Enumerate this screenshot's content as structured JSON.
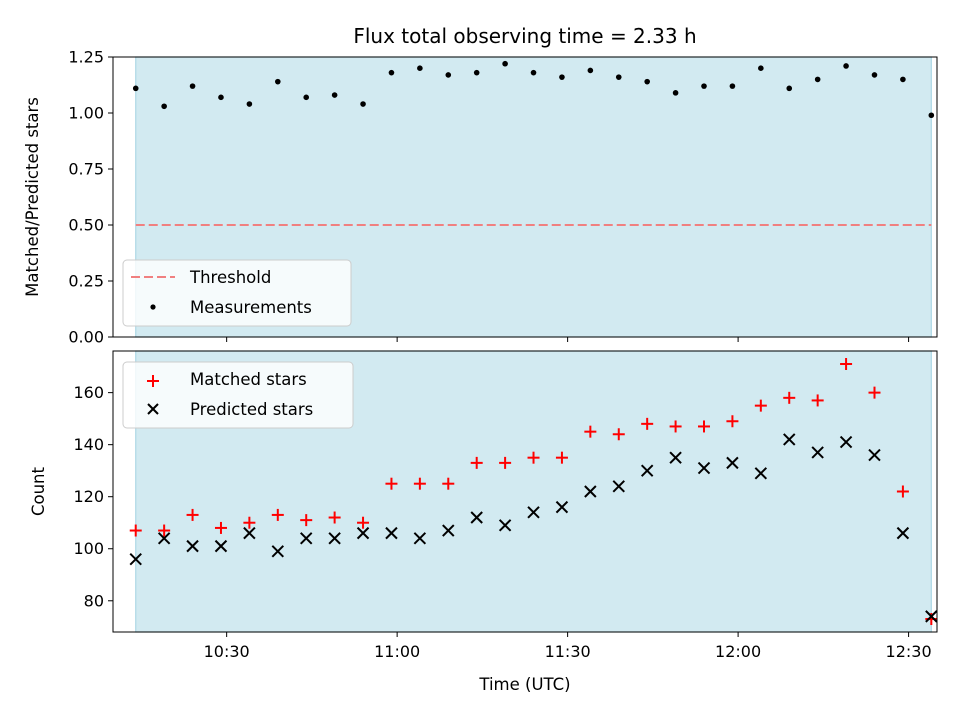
{
  "chart_data": [
    {
      "type": "scatter",
      "title": "Flux total observing time = 2.33 h",
      "xlabel": "",
      "ylabel": "Matched/Predicted stars",
      "ylim": [
        0,
        1.25
      ],
      "yticks": [
        "0.00",
        "0.25",
        "0.50",
        "0.75",
        "1.00",
        "1.25"
      ],
      "xlim": [
        "10:10",
        "12:35"
      ],
      "shaded_span": [
        "10:14",
        "12:34"
      ],
      "shade_color": "#add8e6",
      "legend_position": "lower left",
      "threshold": {
        "name": "Threshold",
        "value": 0.5,
        "color": "#f08080",
        "style": "dashed"
      },
      "series": [
        {
          "name": "Measurements",
          "color": "#000000",
          "marker": "dot",
          "x": [
            "10:14",
            "10:19",
            "10:24",
            "10:29",
            "10:34",
            "10:39",
            "10:44",
            "10:49",
            "10:54",
            "10:59",
            "11:04",
            "11:09",
            "11:14",
            "11:19",
            "11:24",
            "11:29",
            "11:34",
            "11:39",
            "11:44",
            "11:49",
            "11:54",
            "11:59",
            "12:04",
            "12:09",
            "12:14",
            "12:19",
            "12:24",
            "12:29",
            "12:34"
          ],
          "values": [
            1.11,
            1.03,
            1.12,
            1.07,
            1.04,
            1.14,
            1.07,
            1.08,
            1.04,
            1.18,
            1.2,
            1.17,
            1.18,
            1.22,
            1.18,
            1.16,
            1.19,
            1.16,
            1.14,
            1.09,
            1.12,
            1.12,
            1.2,
            1.11,
            1.15,
            1.21,
            1.17,
            1.15,
            0.99
          ]
        }
      ]
    },
    {
      "type": "scatter",
      "title": "",
      "xlabel": "Time (UTC)",
      "ylabel": "Count",
      "ylim": [
        68,
        176
      ],
      "yticks": [
        "80",
        "100",
        "120",
        "140",
        "160"
      ],
      "xlim": [
        "10:10",
        "12:35"
      ],
      "xticks": [
        "10:30",
        "11:00",
        "11:30",
        "12:00",
        "12:30"
      ],
      "shaded_span": [
        "10:14",
        "12:34"
      ],
      "shade_color": "#add8e6",
      "legend_position": "upper left",
      "series": [
        {
          "name": "Matched stars",
          "color": "#ff0000",
          "marker": "plus",
          "x": [
            "10:14",
            "10:19",
            "10:24",
            "10:29",
            "10:34",
            "10:39",
            "10:44",
            "10:49",
            "10:54",
            "10:59",
            "11:04",
            "11:09",
            "11:14",
            "11:19",
            "11:24",
            "11:29",
            "11:34",
            "11:39",
            "11:44",
            "11:49",
            "11:54",
            "11:59",
            "12:04",
            "12:09",
            "12:14",
            "12:19",
            "12:24",
            "12:29",
            "12:34"
          ],
          "values": [
            107,
            107,
            113,
            108,
            110,
            113,
            111,
            112,
            110,
            125,
            125,
            125,
            133,
            133,
            135,
            135,
            145,
            144,
            148,
            147,
            147,
            149,
            155,
            158,
            157,
            171,
            160,
            122,
            73
          ]
        },
        {
          "name": "Predicted stars",
          "color": "#000000",
          "marker": "x",
          "x": [
            "10:14",
            "10:19",
            "10:24",
            "10:29",
            "10:34",
            "10:39",
            "10:44",
            "10:49",
            "10:54",
            "10:59",
            "11:04",
            "11:09",
            "11:14",
            "11:19",
            "11:24",
            "11:29",
            "11:34",
            "11:39",
            "11:44",
            "11:49",
            "11:54",
            "11:59",
            "12:04",
            "12:09",
            "12:14",
            "12:19",
            "12:24",
            "12:29",
            "12:34"
          ],
          "values": [
            96,
            104,
            101,
            101,
            106,
            99,
            104,
            104,
            106,
            106,
            104,
            107,
            112,
            109,
            114,
            116,
            122,
            124,
            130,
            135,
            131,
            133,
            129,
            142,
            137,
            141,
            136,
            106,
            74
          ]
        }
      ]
    }
  ]
}
